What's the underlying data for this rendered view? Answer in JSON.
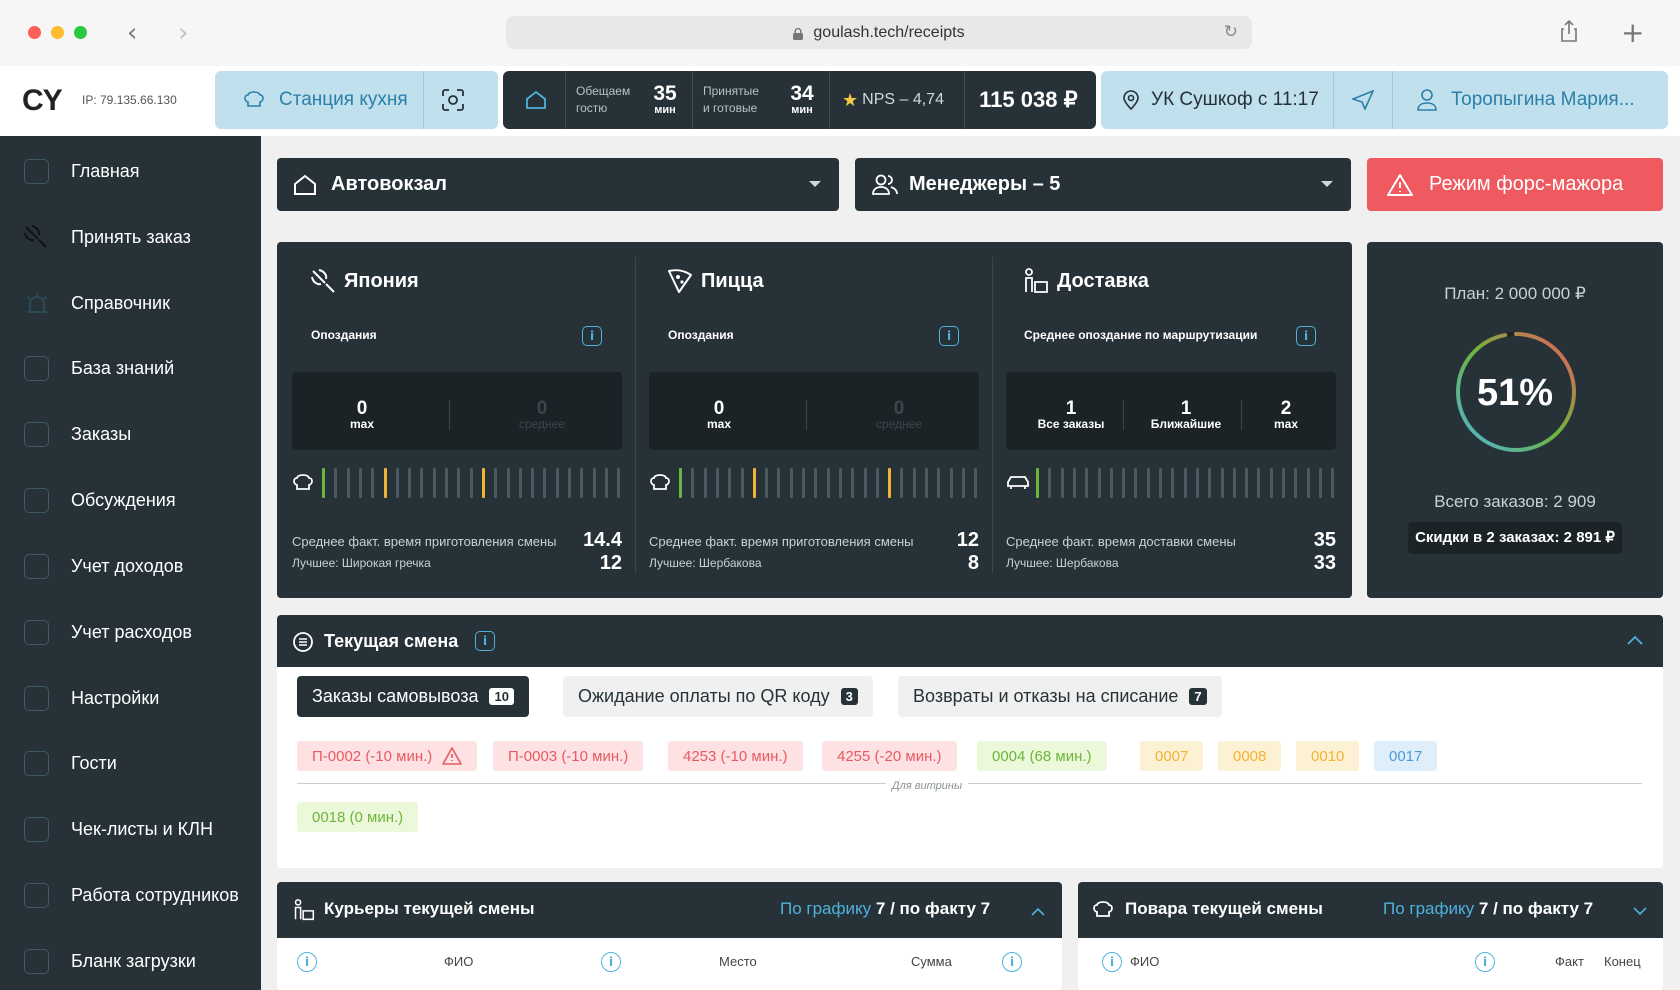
{
  "browser": {
    "url": "goulash.tech/receipts"
  },
  "header": {
    "logo": "CY",
    "ip": "IP: 79.135.66.130",
    "station": "Станция кухня",
    "promise_label_1": "Обещаем",
    "promise_label_2": "гостю",
    "promise_value": "35",
    "promise_unit": "мин",
    "accepted_label_1": "Принятые",
    "accepted_label_2": "и готовые",
    "accepted_value": "34",
    "accepted_unit": "мин",
    "nps": "NPS – 4,74",
    "revenue": "115 038 ₽",
    "location": "УК Сушкоф с 11:17",
    "user": "Торопыгина Мария..."
  },
  "sidebar": {
    "items": [
      {
        "label": "Главная"
      },
      {
        "label": "Принять заказ"
      },
      {
        "label": "Справочник"
      },
      {
        "label": "База знаний"
      },
      {
        "label": "Заказы"
      },
      {
        "label": "Обсуждения"
      },
      {
        "label": "Учет доходов"
      },
      {
        "label": "Учет расходов"
      },
      {
        "label": "Настройки"
      },
      {
        "label": "Гости"
      },
      {
        "label": "Чек-листы и КЛН"
      },
      {
        "label": "Работа сотрудников"
      },
      {
        "label": "Бланк загрузки"
      }
    ]
  },
  "toolbar": {
    "branch": "Автовокзал",
    "managers": "Менеджеры – 5",
    "force_mode": "Режим форс-мажора"
  },
  "stations": [
    {
      "title": "Япония",
      "subtitle": "Опоздания",
      "stats": [
        {
          "value": "0",
          "label": "max"
        },
        {
          "value": "0",
          "label": "среднее"
        }
      ],
      "avg_label": "Среднее факт. время приготовления смены",
      "avg_value": "14.4",
      "best_label": "Лучшее: Широкая гречка",
      "best_value": "12"
    },
    {
      "title": "Пицца",
      "subtitle": "Опоздания",
      "stats": [
        {
          "value": "0",
          "label": "max"
        },
        {
          "value": "0",
          "label": "среднее"
        }
      ],
      "avg_label": "Среднее факт. время приготовления смены",
      "avg_value": "12",
      "best_label": "Лучшее: Шербакова",
      "best_value": "8"
    },
    {
      "title": "Доставка",
      "subtitle": "Среднее опоздание по маршрутизации",
      "stats": [
        {
          "value": "1",
          "label": "Все заказы"
        },
        {
          "value": "1",
          "label": "Ближайшие"
        },
        {
          "value": "2",
          "label": "max"
        }
      ],
      "avg_label": "Среднее факт. время доставки смены",
      "avg_value": "35",
      "best_label": "Лучшее: Шербакова",
      "best_value": "33"
    }
  ],
  "plan": {
    "title": "План: 2 000 000 ₽",
    "percent_label": "51%",
    "progress": 0.51,
    "total_orders": "Всего заказов: 2 909",
    "discounts": "Скидки в 2 заказах: 2 891 ₽"
  },
  "shift": {
    "title": "Текущая смена",
    "tabs": [
      {
        "label": "Заказы самовывоза",
        "count": "10",
        "active": true
      },
      {
        "label": "Ожидание оплаты по QR коду",
        "count": "3",
        "active": false
      },
      {
        "label": "Возвраты и отказы на списание",
        "count": "7",
        "active": false
      }
    ],
    "orders": [
      {
        "label": "П-0002 (-10 мин.)",
        "status": "red",
        "warning": true
      },
      {
        "label": "П-0003 (-10 мин.)",
        "status": "red"
      },
      {
        "label": "4253 (-10 мин.)",
        "status": "red"
      },
      {
        "label": "4255 (-20 мин.)",
        "status": "red"
      },
      {
        "label": "0004 (68 мин.)",
        "status": "green"
      },
      {
        "label": "0007",
        "status": "yellow"
      },
      {
        "label": "0008",
        "status": "yellow"
      },
      {
        "label": "0010",
        "status": "yellow"
      },
      {
        "label": "0017",
        "status": "blue"
      }
    ],
    "divider_label": "Для витрины",
    "showcase_orders": [
      {
        "label": "0018 (0 мин.)",
        "status": "green"
      }
    ]
  },
  "couriers": {
    "title": "Курьеры текущей смены",
    "schedule_label": "По графику",
    "schedule_value": "7",
    "fact_label": "/ по факту 7",
    "columns": [
      "ФИО",
      "Место",
      "Сумма"
    ]
  },
  "cooks": {
    "title": "Повара текущей смены",
    "schedule_label": "По графику",
    "schedule_value": "7",
    "fact_label": "/ по факту 7",
    "columns": [
      "ФИО",
      "Факт",
      "Конец"
    ]
  },
  "colors": {
    "dark": "#263238",
    "accent": "#4fb2dd",
    "danger": "#ee5a5f",
    "green": "#6db53b",
    "yellow": "#f2b233"
  }
}
